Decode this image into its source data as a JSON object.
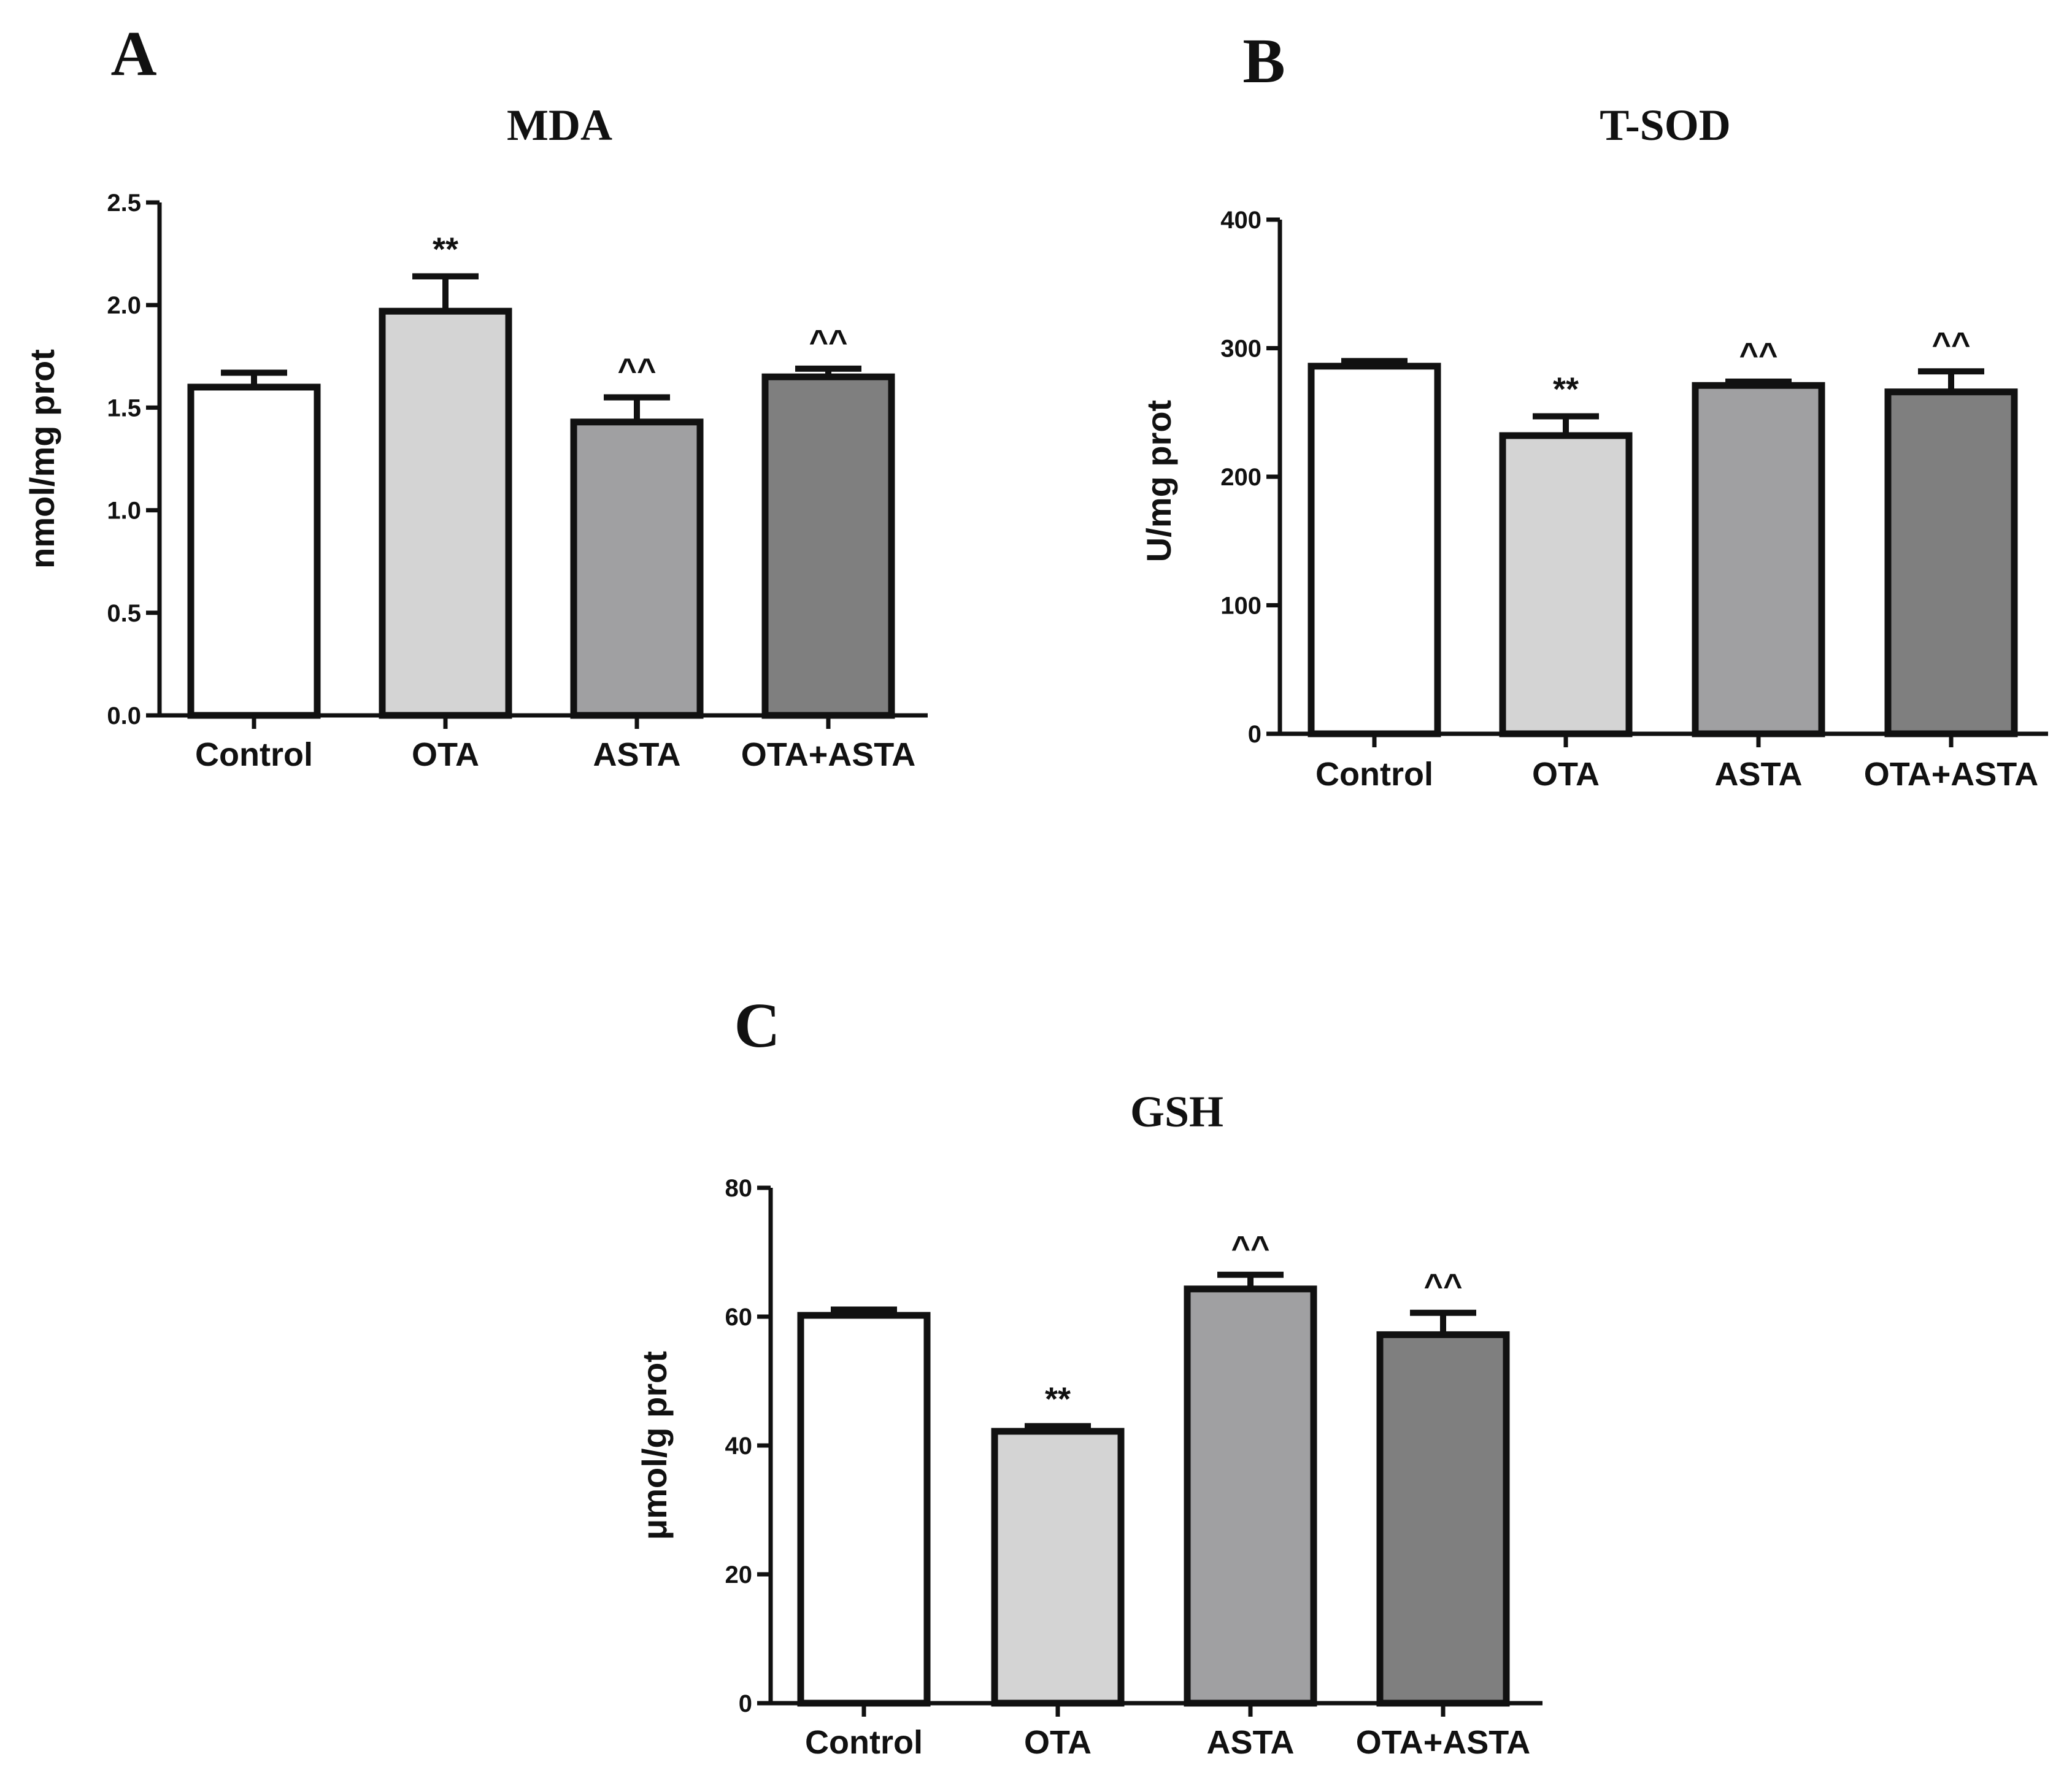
{
  "chart_data": [
    {
      "panel": "A",
      "type": "bar",
      "title": "MDA",
      "ylabel": "nmol/mg prot",
      "xlabel": "",
      "categories": [
        "Control",
        "OTA",
        "ASTA",
        "OTA+ASTA"
      ],
      "values": [
        1.6,
        1.97,
        1.43,
        1.65
      ],
      "errors": [
        0.07,
        0.17,
        0.12,
        0.04
      ],
      "fills": [
        "#ffffff",
        "#d4d4d4",
        "#a0a0a2",
        "#7f7f7f"
      ],
      "significance": [
        "",
        "**",
        "^^",
        "^^"
      ],
      "ylim": [
        0,
        2.5
      ],
      "yticks": [
        "0.0",
        "0.5",
        "1.0",
        "1.5",
        "2.0",
        "2.5"
      ],
      "grid": false
    },
    {
      "panel": "B",
      "type": "bar",
      "title": "T-SOD",
      "ylabel": "U/mg prot",
      "xlabel": "",
      "categories": [
        "Control",
        "OTA",
        "ASTA",
        "OTA+ASTA"
      ],
      "values": [
        286,
        232,
        271,
        266
      ],
      "errors": [
        4,
        15,
        3,
        16
      ],
      "fills": [
        "#ffffff",
        "#d4d4d4",
        "#a0a0a2",
        "#7f7f7f"
      ],
      "significance": [
        "",
        "**",
        "^^",
        "^^"
      ],
      "ylim": [
        0,
        400
      ],
      "yticks": [
        "0",
        "100",
        "200",
        "300",
        "400"
      ],
      "grid": false
    },
    {
      "panel": "C",
      "type": "bar",
      "title": "GSH",
      "ylabel": "μmol/g prot",
      "xlabel": "",
      "categories": [
        "Control",
        "OTA",
        "ASTA",
        "OTA+ASTA"
      ],
      "values": [
        60.2,
        42.2,
        64.3,
        57.2
      ],
      "errors": [
        0.9,
        0.8,
        2.2,
        3.4
      ],
      "fills": [
        "#ffffff",
        "#d4d4d4",
        "#a0a0a2",
        "#7f7f7f"
      ],
      "significance": [
        "",
        "**",
        "^^",
        "^^"
      ],
      "ylim": [
        0,
        80
      ],
      "yticks": [
        "0",
        "20",
        "40",
        "60",
        "80"
      ],
      "grid": false
    }
  ]
}
